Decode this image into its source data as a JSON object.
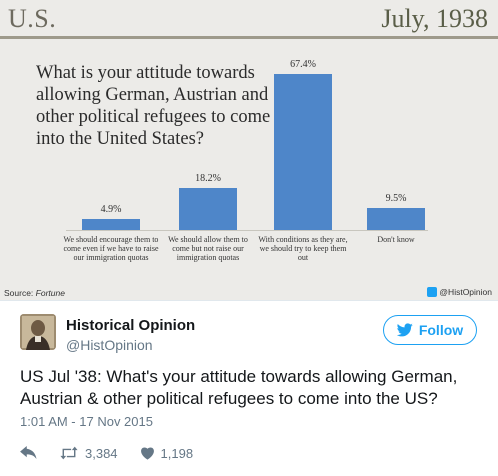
{
  "chart_image": {
    "country": "U.S.",
    "date": "July, 1938",
    "question": "What is your attitude towards allowing German, Austrian and other political refugees to come into the United States?",
    "source_label": "Source:",
    "source_name": "Fortune",
    "handle": "@HistOpinion"
  },
  "chart_data": {
    "type": "bar",
    "title": "What is your attitude towards allowing German, Austrian and other political refugees to come into the United States?",
    "categories": [
      "We should encourage them to come even if we have to raise our immigration quotas",
      "We should allow them to come but not raise our immigration quotas",
      "With conditions as they are, we should try to keep them out",
      "Don't know"
    ],
    "values": [
      4.9,
      18.2,
      67.4,
      9.5
    ],
    "value_labels": [
      "4.9%",
      "18.2%",
      "67.4%",
      "9.5%"
    ],
    "ylim": [
      0,
      70
    ],
    "bar_color": "#4e86c9",
    "grid": false
  },
  "tweet": {
    "author_name": "Historical Opinion",
    "author_handle": "@HistOpinion",
    "follow_label": "Follow",
    "text": "US Jul '38: What's your attitude towards allowing German, Austrian & other political refugees to come into the US?",
    "timestamp": "1:01 AM - 17 Nov 2015",
    "retweets": "3,384",
    "likes": "1,198",
    "accent_color": "#1da1f2",
    "like_color": "#657786"
  },
  "icons": {
    "reply": "reply-icon",
    "retweet": "retweet-icon",
    "like": "heart-icon",
    "follow": "twitter-bird-icon"
  }
}
